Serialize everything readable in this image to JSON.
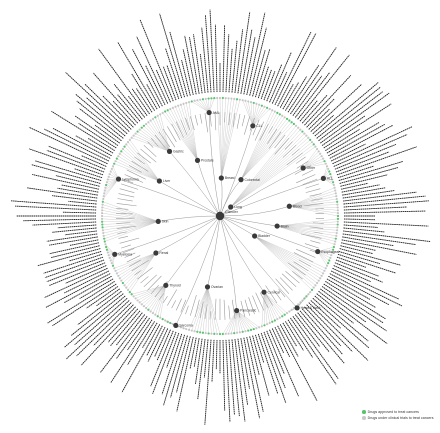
{
  "colors": {
    "approved": "#55c46a",
    "trial": "#c9c9c9",
    "edge": "#8a8a8a",
    "node": "#3a3a3a",
    "label": "#222222"
  },
  "legend": {
    "approved_label": "Drugs approved to treat cancers",
    "trial_label": "Drugs under clinical trials to treat cancers"
  },
  "center": {
    "label": "Cancer"
  },
  "categories": [
    {
      "label": "Lung"
    },
    {
      "label": "Colorectal"
    },
    {
      "label": "Breast"
    },
    {
      "label": "Prostate"
    },
    {
      "label": "Gastric"
    },
    {
      "label": "Liver"
    },
    {
      "label": "Skin"
    },
    {
      "label": "Renal"
    },
    {
      "label": "Thyroid"
    },
    {
      "label": "Ovarian"
    },
    {
      "label": "Pancreatic"
    },
    {
      "label": "Cervical"
    },
    {
      "label": "Bladder"
    },
    {
      "label": "Brain"
    },
    {
      "label": "Blood"
    },
    {
      "label": "ALL"
    },
    {
      "label": "CLL"
    },
    {
      "label": "AML"
    },
    {
      "label": "Lymphoma"
    },
    {
      "label": "Myeloma"
    },
    {
      "label": "Sarcoma"
    },
    {
      "label": "Head & Neck"
    },
    {
      "label": "Esophageal"
    },
    {
      "label": "Other"
    }
  ]
}
